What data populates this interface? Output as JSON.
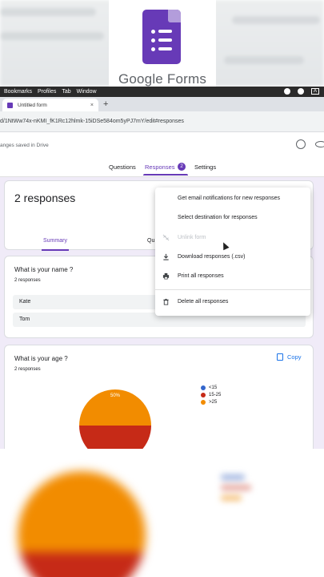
{
  "logo": {
    "text": "Google Forms"
  },
  "menubar": {
    "items": [
      "Bookmarks",
      "Profiles",
      "Tab",
      "Window"
    ],
    "right_box": "A"
  },
  "browser": {
    "tab_title": "Untitled form",
    "tab_close": "×",
    "new_tab": "+",
    "url": "d/1NtWw74x-nKMI_fK1Rc12hlmk-15iDSe584om5yPJ7mY/edit#responses"
  },
  "header": {
    "save_status": "anges saved in Drive",
    "tabs": [
      "Questions",
      "Responses",
      "Settings"
    ],
    "responses_badge": "2"
  },
  "summary_card": {
    "title": "2 responses",
    "tab_summary": "Summary",
    "tab_question": "Qu"
  },
  "question1": {
    "title": "What is your name ?",
    "count": "2 responses",
    "answers": [
      "Kate",
      "Tom"
    ]
  },
  "question2": {
    "title": "What is your age ?",
    "count": "2 responses",
    "copy_label": "Copy"
  },
  "chart_data": {
    "type": "pie",
    "categories": [
      "<15",
      "15-25",
      ">25"
    ],
    "values": [
      0,
      50,
      50
    ],
    "slice_labels": [
      "",
      "",
      "50%"
    ],
    "colors": [
      "#3366cc",
      "#c62a17",
      "#f28c00"
    ],
    "legend_position": "right"
  },
  "menu": {
    "items": [
      {
        "label": "Get email notifications for new responses",
        "enabled": true,
        "icon": "none"
      },
      {
        "label": "Select destination for responses",
        "enabled": true,
        "icon": "none"
      },
      {
        "label": "Unlink form",
        "enabled": false,
        "icon": "unlink-icon"
      },
      {
        "label": "Download responses (.csv)",
        "enabled": true,
        "icon": "download-icon"
      },
      {
        "label": "Print all responses",
        "enabled": true,
        "icon": "print-icon"
      },
      {
        "label": "Delete all responses",
        "enabled": true,
        "icon": "trash-icon"
      }
    ]
  },
  "colors": {
    "accent": "#673ab7",
    "page_bg": "#f0ebf8",
    "link": "#1a73e8"
  }
}
